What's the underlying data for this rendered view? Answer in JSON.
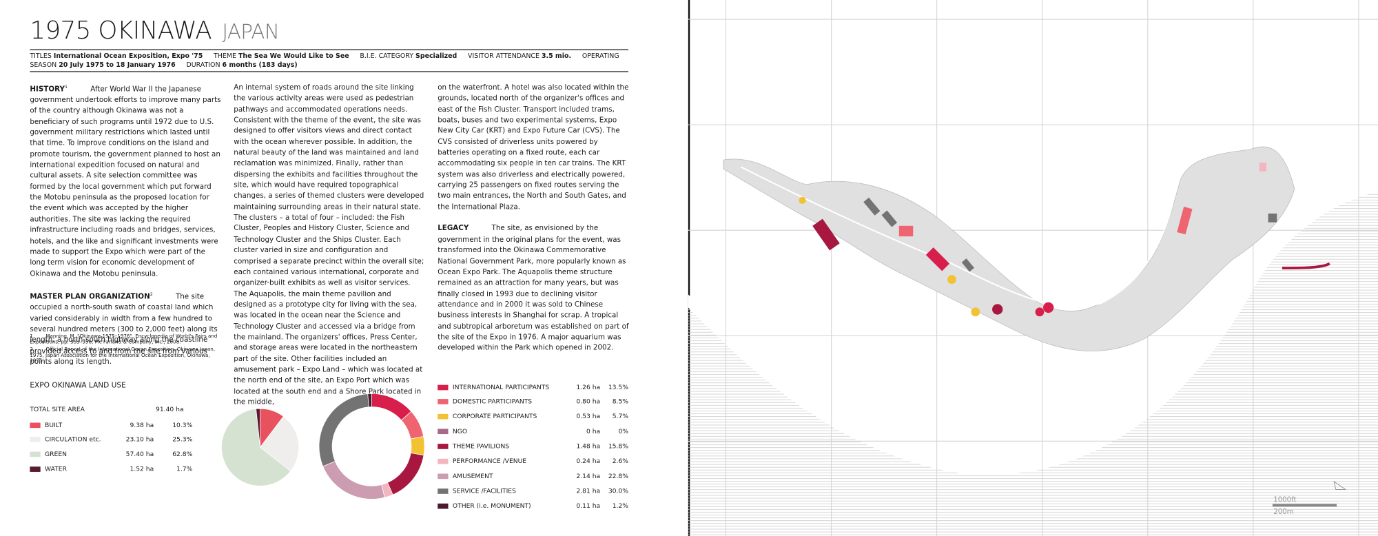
{
  "header": {
    "title": "1975 OKINAWA",
    "country": "JAPAN"
  },
  "meta": [
    {
      "label": "TITLES",
      "value": "International Ocean Exposition, Expo '75"
    },
    {
      "label": "THEME",
      "value": "The Sea We Would Like to See"
    },
    {
      "label": "B.I.E. CATEGORY",
      "value": "Specialized"
    },
    {
      "label": "VISITOR ATTENDANCE",
      "value": "3.5 mio."
    },
    {
      "label": "OPERATING SEASON",
      "value": "20 July 1975 to 18 January 1976"
    },
    {
      "label": "DURATION",
      "value": "6 months (183 days)"
    }
  ],
  "columns": [
    [
      {
        "heading": "HISTORY",
        "note": "1",
        "text": "After World War II the Japanese government undertook efforts to improve many parts of the country although Okinawa was not a beneficiary of such programs until 1972 due to U.S. government military restrictions which lasted until that time. To improve conditions on the island and promote tourism, the government planned to host an international expedition focused on natural and cultural assets. A site selection committee was formed by the local government which put forward the Motobu peninsula as the proposed location for the event which was accepted by the higher authorities. The site was lacking the required infrastructure including roads and bridges, services, hotels, and the like and significant investments were made to support the Expo which were part of the long term vision for economic development of Okinawa and the Motobu peninsula."
      },
      {
        "heading": "MASTER PLAN ORGANIZATION",
        "note": "2",
        "text": "The site occupied a north-south swath of coastal land which varied considerably in width from a few hundred to several hundred meters (300 to 2,000 feet) along its length; a north-south highway along the coastline provided access to and from the site from various points along its length."
      }
    ],
    [
      {
        "text": "An internal system of roads around the site linking the various activity areas were used as pedestrian pathways and accommodated operations needs. Consistent with the theme of the event, the site was designed to offer visitors views and direct contact with the ocean wherever possible. In addition, the natural beauty of the land was maintained and land reclamation was minimized. Finally, rather than dispersing the exhibits and facilities throughout the site, which would have required topographical changes, a series of themed clusters were developed maintaining surrounding areas in their natural state. The clusters – a total of four – included: the Fish Cluster, Peoples and History Cluster, Science and Technology Cluster and the Ships Cluster. Each cluster varied in size and configuration and comprised a separate precinct within the overall site; each contained various international, corporate and organizer-built exhibits as well as visitor services. The Aquapolis, the main theme pavilion and designed as a prototype city for living with the sea, was located in the ocean near the Science and Technology Cluster and accessed via a bridge from the mainland. The organizers' offices, Press Center, and storage areas were located in the northeastern part of the site. Other facilities included an amusement park – Expo Land – which was located at the north end of the site, an Expo Port which was located at the south end and a Shore Park located in the middle,"
      }
    ],
    [
      {
        "text": "on the waterfront. A hotel was also located within the grounds, located north of the organizer's offices and east of the Fish Cluster. Transport included trams, boats, buses and two experimental systems, Expo New City Car (KRT) and Expo Future Car (CVS). The CVS consisted of driverless units powered by batteries operating on a fixed route, each car accommodating six people in ten car trains. The KRT system was also driverless and electrically powered, carrying 25 passengers on fixed routes serving the two main entrances, the North and South Gates, and the International Plaza."
      },
      {
        "heading": "LEGACY",
        "text": "The site, as envisioned by the government in the original plans for the event, was transformed into the Okinawa Commemorative National Government Park, more popularly known as Ocean Expo Park. The Aquapolis theme structure remained as an attraction for many years, but was finally closed in 1993 due to declining visitor attendance and in 2000 it was sold to Chinese business interests in Shanghai for scrap. A tropical and subtropical arboretum was established on part of the site of the Expo in 1976. A major aquarium was developed within the Park which opened in 2002."
      }
    ]
  ],
  "footnotes": [
    {
      "number": "1",
      "text": "Manning, M. \"Okinawa 1975–1976\", Encyclopedia of World's Fairs and Expositions, pp. 353–356, Mc Farland & Company, Inc., 2008."
    },
    {
      "number": "2",
      "text": "Official Report of the International Ocean Exposition, Okinawa Japan, 1975, Japan Association for the International Ocean Exposition, Okinawa, 1975."
    }
  ],
  "land_use": {
    "title": "EXPO OKINAWA LAND USE",
    "total_label": "TOTAL SITE AREA",
    "total_value": "91.40 ha"
  },
  "chart_data": [
    {
      "type": "pie",
      "categories": [
        "BUILT",
        "CIRCULATION etc.",
        "GREEN",
        "WATER"
      ],
      "areas": [
        "9.38 ha",
        "23.10 ha",
        "57.40 ha",
        "1.52 ha"
      ],
      "values": [
        10.3,
        25.3,
        62.8,
        1.7
      ],
      "value_labels": [
        "10.3%",
        "25.3%",
        "62.8%",
        "1.7%"
      ],
      "colors": [
        "#e8525f",
        "#efeeec",
        "#d5e2d2",
        "#5a1a32"
      ]
    },
    {
      "type": "donut",
      "categories": [
        "INTERNATIONAL PARTICIPANTS",
        "DOMESTIC PARTICIPANTS",
        "CORPORATE PARTICIPANTS",
        "NGO",
        "THEME PAVILIONS",
        "PERFORMANCE /VENUE",
        "AMUSEMENT",
        "SERVICE /FACILITIES",
        "OTHER (i.e. MONUMENT)"
      ],
      "areas": [
        "1.26 ha",
        "0.80 ha",
        "0.53 ha",
        "0 ha",
        "1.48 ha",
        "0.24 ha",
        "2.14 ha",
        "2.81 ha",
        "0.11 ha"
      ],
      "values": [
        13.5,
        8.5,
        5.7,
        0,
        15.8,
        2.6,
        22.8,
        30.0,
        1.2
      ],
      "value_labels": [
        "13.5%",
        "8.5%",
        "5.7%",
        "0%",
        "15.8%",
        "2.6%",
        "22.8%",
        "30.0%",
        "1.2%"
      ],
      "colors": [
        "#d81e4a",
        "#ee6470",
        "#f2c232",
        "#a86a8a",
        "#a8173f",
        "#f3b5c0",
        "#cc9cb0",
        "#737373",
        "#4a1a2e"
      ]
    }
  ],
  "map": {
    "scale_labels": [
      "1000ft",
      "200m"
    ]
  }
}
